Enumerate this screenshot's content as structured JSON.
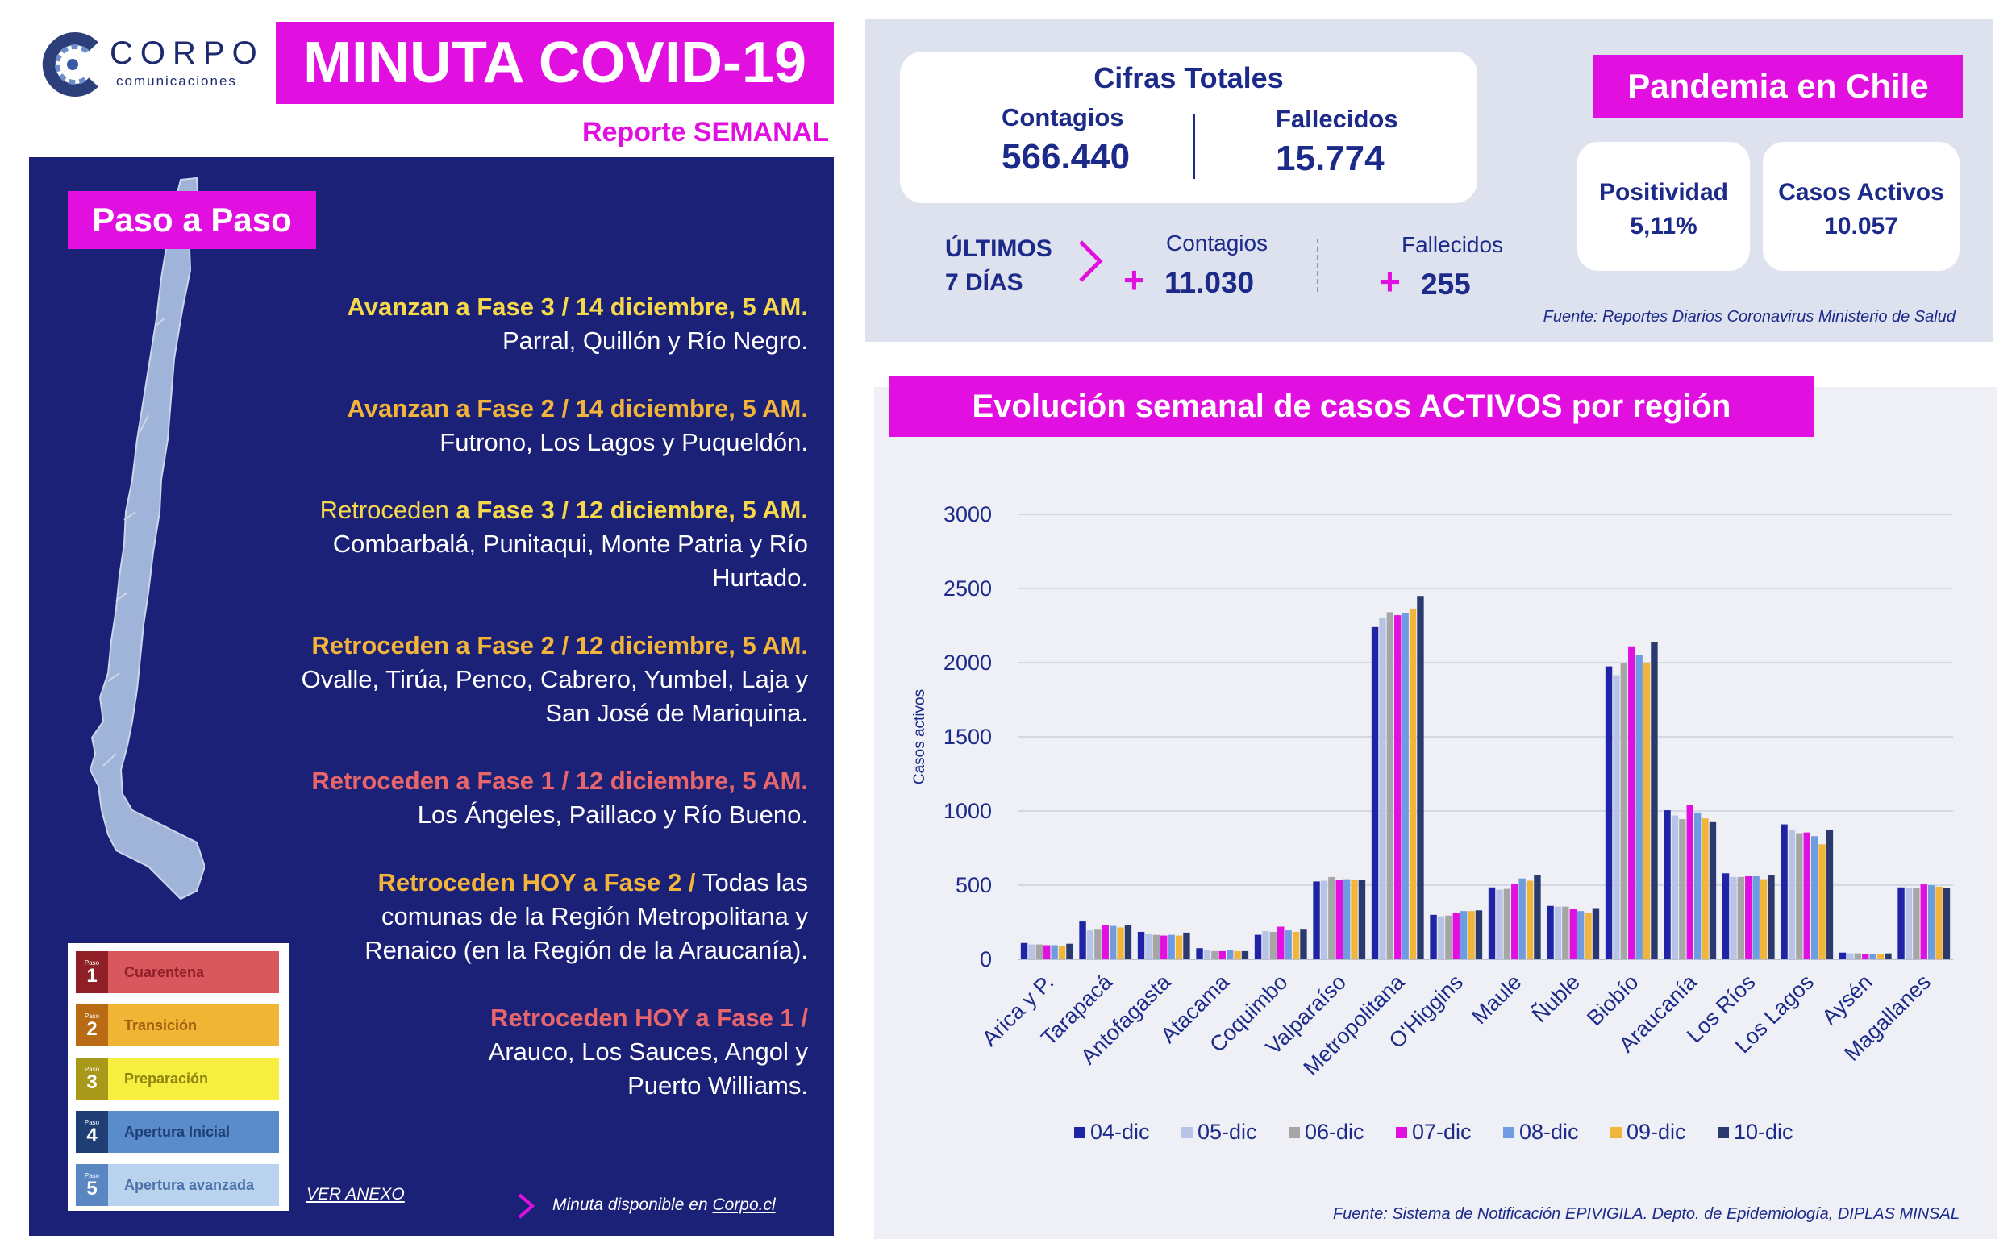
{
  "header": {
    "logo_name": "CORPO",
    "logo_sub": "comunicaciones",
    "title": "MINUTA COVID-19",
    "subtitle": "Reporte SEMANAL"
  },
  "colors": {
    "magenta": "#e10fe0",
    "navy": "#1c2178",
    "text_blue": "#1c2a8a",
    "panel_grey": "#dde2ee"
  },
  "paso_a_paso": {
    "title": "Paso a Paso",
    "updates": [
      {
        "heading": "Avanzan a Fase 3 / 14 diciembre, 5 AM.",
        "text": "Parral, Quillón y Río Negro.",
        "color": "yellow"
      },
      {
        "heading": "Avanzan a Fase 2 / 14 diciembre, 5 AM.",
        "text": "Futrono, Los Lagos y Puqueldón.",
        "color": "orange"
      },
      {
        "heading_plain": "Retroceden ",
        "heading": "a Fase 3 / 12 diciembre, 5 AM.",
        "text": "Combarbalá, Punitaqui, Monte Patria y Río Hurtado.",
        "color": "yellow"
      },
      {
        "heading": "Retroceden a Fase 2 / 12 diciembre, 5 AM.",
        "text": "Ovalle, Tirúa, Penco, Cabrero, Yumbel, Laja y San José de Mariquina.",
        "color": "orange"
      },
      {
        "heading": "Retroceden a Fase 1 / 12 diciembre, 5 AM.",
        "text": "Los Ángeles, Paillaco y Río Bueno.",
        "color": "red"
      },
      {
        "heading": "Retroceden HOY a Fase  2 / ",
        "text": "Todas las comunas de la Región Metropolitana y Renaico (en la Región de la Araucanía).",
        "color": "orange"
      },
      {
        "heading": "Retroceden HOY a Fase 1 / ",
        "text": "Arauco, Los Sauces, Angol y Puerto Williams.",
        "color": "red"
      }
    ],
    "legend": [
      {
        "small": "Paso",
        "num": "1",
        "label": "Cuarentena",
        "num_color": "#8f2027",
        "bg": "#d9585e",
        "text_color": "#8f2027"
      },
      {
        "small": "Paso",
        "num": "2",
        "label": "Transición",
        "num_color": "#b86a14",
        "bg": "#f0b535",
        "text_color": "#a25e10"
      },
      {
        "small": "Paso",
        "num": "3",
        "label": "Preparación",
        "num_color": "#a8991a",
        "bg": "#f7ef3f",
        "text_color": "#8f8412"
      },
      {
        "small": "Paso",
        "num": "4",
        "label": "Apertura Inicial",
        "num_color": "#1f3f74",
        "bg": "#5a8ccc",
        "text_color": "#1f3f74"
      },
      {
        "small": "Paso",
        "num": "5",
        "label": "Apertura avanzada",
        "num_color": "#5a86c2",
        "bg": "#b9d2ee",
        "text_color": "#4a72a8"
      }
    ],
    "ver_anexo": "VER ANEXO",
    "minuta_text": "Minuta disponible en ",
    "minuta_link": "Corpo.cl"
  },
  "cifras": {
    "title": "Cifras Totales",
    "contagios_label": "Contagios",
    "contagios_value": "566.440",
    "fallecidos_label": "Fallecidos",
    "fallecidos_value": "15.774",
    "ultimos_line1": "ÚLTIMOS",
    "ultimos_line2": "7 DÍAS",
    "u_contagios_label": "Contagios",
    "u_contagios_value": "11.030",
    "u_fallecidos_label": "Fallecidos",
    "u_fallecidos_value": "255",
    "plus": "+",
    "fuente": "Fuente: Reportes Diarios Coronavirus Ministerio de Salud"
  },
  "pandemia": {
    "title": "Pandemia en Chile",
    "positividad_label": "Positividad",
    "positividad_value": "5,11%",
    "activos_label": "Casos Activos",
    "activos_value": "10.057"
  },
  "chart_title": "Evolución semanal de casos ACTIVOS por región",
  "chart_fuente": "Fuente: Sistema de Notificación EPIVIGILA. Depto. de Epidemiología, DIPLAS MINSAL",
  "chart_data": {
    "type": "bar",
    "ylabel": "Casos activos",
    "ylim": [
      0,
      3000
    ],
    "yticks": [
      0,
      500,
      1000,
      1500,
      2000,
      2500,
      3000
    ],
    "grid": true,
    "legend_position": "bottom",
    "categories": [
      "Arica y P.",
      "Tarapacá",
      "Antofagasta",
      "Atacama",
      "Coquimbo",
      "Valparaíso",
      "Metropolitana",
      "O'Higgins",
      "Maule",
      "Ñuble",
      "Biobío",
      "Araucanía",
      "Los Ríos",
      "Los Lagos",
      "Aysén",
      "Magallanes"
    ],
    "series": [
      {
        "name": "04-dic",
        "color": "#1f23a6",
        "values": [
          110,
          255,
          185,
          75,
          165,
          525,
          2240,
          300,
          485,
          360,
          1975,
          1005,
          580,
          910,
          45,
          485
        ]
      },
      {
        "name": "05-dic",
        "color": "#b8c4e6",
        "values": [
          100,
          195,
          170,
          60,
          190,
          530,
          2305,
          290,
          470,
          355,
          1915,
          970,
          555,
          875,
          40,
          480
        ]
      },
      {
        "name": "06-dic",
        "color": "#a6a6a6",
        "values": [
          100,
          200,
          165,
          55,
          185,
          555,
          2340,
          295,
          475,
          355,
          1995,
          945,
          555,
          850,
          40,
          480
        ]
      },
      {
        "name": "07-dic",
        "color": "#e10fe0",
        "values": [
          95,
          230,
          160,
          55,
          220,
          535,
          2320,
          310,
          510,
          340,
          2110,
          1040,
          560,
          855,
          35,
          505
        ]
      },
      {
        "name": "08-dic",
        "color": "#6f9ce0",
        "values": [
          95,
          225,
          165,
          60,
          195,
          540,
          2335,
          325,
          545,
          325,
          2050,
          990,
          560,
          830,
          35,
          500
        ]
      },
      {
        "name": "09-dic",
        "color": "#f0b53a",
        "values": [
          90,
          215,
          160,
          55,
          185,
          535,
          2360,
          325,
          530,
          310,
          2000,
          950,
          540,
          775,
          35,
          490
        ]
      },
      {
        "name": "10-dic",
        "color": "#2b3a6e",
        "values": [
          105,
          230,
          180,
          55,
          200,
          535,
          2450,
          330,
          570,
          345,
          2140,
          925,
          565,
          875,
          40,
          480
        ]
      }
    ]
  }
}
